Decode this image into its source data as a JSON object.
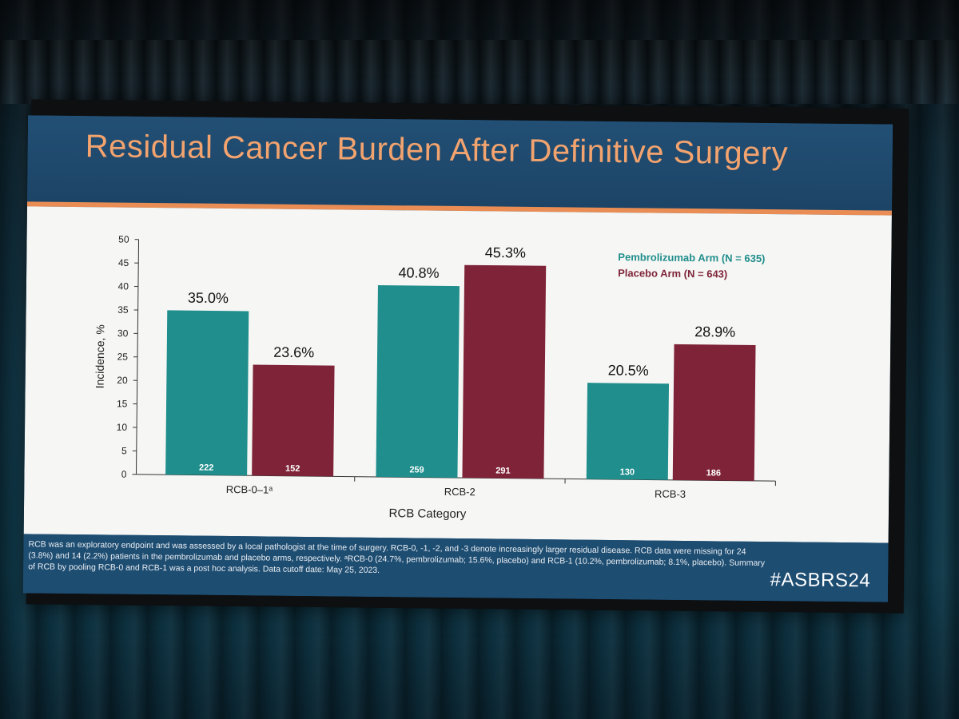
{
  "slide": {
    "title": "Residual Cancer Burden After Definitive Surgery",
    "hashtag": "#ASBRS24",
    "footnote": "RCB was an exploratory endpoint and was assessed by a local pathologist at the time of surgery. RCB-0, -1, -2, and -3 denote increasingly larger residual disease. RCB data were missing for 24 (3.8%) and 14 (2.2%) patients in the pembrolizumab and placebo arms, respectively. ᵃRCB-0 (24.7%, pembrolizumab; 15.6%, placebo) and RCB-1 (10.2%, pembrolizumab; 8.1%, placebo). Summary of RCB by pooling RCB-0 and RCB-1 was a post hoc analysis. Data cutoff date: May 25, 2023."
  },
  "colors": {
    "pembro": "#1f8e8c",
    "placebo": "#7f2438",
    "title": "#f3a36e",
    "band": "#1e4d72"
  },
  "chart_data": {
    "type": "bar",
    "title": "",
    "xlabel": "RCB Category",
    "ylabel": "Incidence, %",
    "ylim": [
      0,
      50
    ],
    "yticks": [
      "0",
      "5",
      "10",
      "15",
      "20",
      "25",
      "30",
      "35",
      "40",
      "45",
      "50"
    ],
    "categories": [
      "RCB-0–1ᵃ",
      "RCB-2",
      "RCB-3"
    ],
    "series": [
      {
        "name": "Pembrolizumab Arm (N = 635)",
        "values": [
          35.0,
          40.8,
          20.5
        ],
        "labels": [
          "35.0%",
          "40.8%",
          "20.5%"
        ],
        "counts": [
          "222",
          "259",
          "130"
        ]
      },
      {
        "name": "Placebo Arm (N = 643)",
        "values": [
          23.6,
          45.3,
          28.9
        ],
        "labels": [
          "23.6%",
          "45.3%",
          "28.9%"
        ],
        "counts": [
          "152",
          "291",
          "186"
        ]
      }
    ],
    "legend": "top-right"
  }
}
